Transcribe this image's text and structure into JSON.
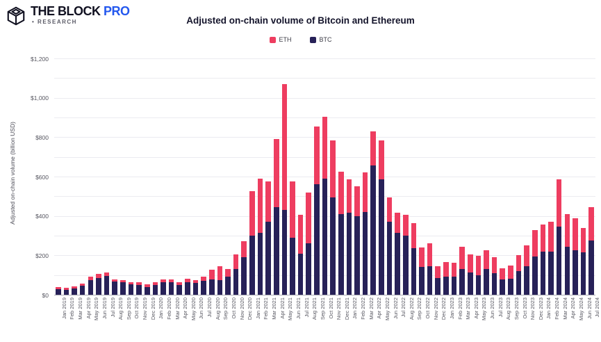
{
  "header": {
    "logo": {
      "brand": "THE BLOCK",
      "pro": "PRO",
      "research_bullet": "•",
      "research": "RESEARCH",
      "pro_color": "#2458ee"
    }
  },
  "legend": [
    {
      "label": "ETH",
      "color": "#ee3d60"
    },
    {
      "label": "BTC",
      "color": "#272158"
    }
  ],
  "chart_data": {
    "type": "bar",
    "stacked": true,
    "title": "Adjusted on-chain volume of Bitcoin and Ethereum",
    "xlabel": "",
    "ylabel": "Adjusted on-chain volume (billion USD)",
    "ylim": [
      0,
      1200
    ],
    "grid": true,
    "grid_step": 100,
    "label_step": 200,
    "legend_position": "top-center",
    "ytick_labels": [
      "$0",
      "$200",
      "$400",
      "$600",
      "$800",
      "$1,000",
      "$1,200"
    ],
    "categories": [
      "Jan 2019",
      "Feb 2019",
      "Mar 2019",
      "Apr 2019",
      "May 2019",
      "Jun 2019",
      "Jul 2019",
      "Aug 2019",
      "Sep 2019",
      "Oct 2019",
      "Nov 2019",
      "Dec 2019",
      "Jan 2020",
      "Feb 2020",
      "Mar 2020",
      "Apr 2020",
      "May 2020",
      "Jun 2020",
      "Jul 2020",
      "Aug 2020",
      "Sep 2020",
      "Oct 2020",
      "Nov 2020",
      "Dec 2020",
      "Jan 2021",
      "Feb 2021",
      "Mar 2021",
      "Apr 2021",
      "May 2021",
      "Jun 2021",
      "Jul 2021",
      "Aug 2021",
      "Sep 2021",
      "Oct 2021",
      "Nov 2021",
      "Dec 2021",
      "Jan 2022",
      "Feb 2022",
      "Mar 2022",
      "Apr 2022",
      "May 2022",
      "Jun 2022",
      "Jul 2022",
      "Aug 2022",
      "Sep 2022",
      "Oct 2022",
      "Nov 2022",
      "Dec 2022",
      "Jan 2023",
      "Feb 2023",
      "Mar 2023",
      "Apr 2023",
      "May 2023",
      "Jun 2023",
      "Jul 2023",
      "Aug 2023",
      "Sep 2023",
      "Oct 2023",
      "Nov 2023",
      "Dec 2023",
      "Jan 2024",
      "Feb 2024",
      "Mar 2024",
      "Apr 2024",
      "May 2024",
      "Jun 2024",
      "Jul 2024"
    ],
    "series": [
      {
        "name": "BTC",
        "color": "#272158",
        "values": [
          29,
          26,
          31,
          46,
          74,
          86,
          95,
          66,
          63,
          52,
          51,
          40,
          51,
          63,
          62,
          48,
          63,
          59,
          70,
          77,
          74,
          92,
          131,
          189,
          300,
          315,
          370,
          445,
          430,
          290,
          210,
          260,
          560,
          590,
          495,
          410,
          415,
          400,
          420,
          655,
          585,
          370,
          315,
          300,
          235,
          140,
          145,
          85,
          93,
          93,
          130,
          113,
          100,
          130,
          110,
          78,
          82,
          120,
          145,
          195,
          218,
          220,
          345,
          245,
          225,
          215,
          275
        ]
      },
      {
        "name": "ETH",
        "color": "#ee3d60",
        "values": [
          10,
          9,
          10,
          11,
          18,
          21,
          17,
          12,
          11,
          11,
          12,
          12,
          12,
          14,
          15,
          14,
          17,
          14,
          21,
          50,
          72,
          39,
          73,
          83,
          225,
          275,
          205,
          345,
          640,
          285,
          195,
          260,
          295,
          315,
          290,
          215,
          170,
          150,
          200,
          175,
          200,
          125,
          100,
          105,
          130,
          100,
          115,
          60,
          72,
          69,
          112,
          92,
          96,
          95,
          80,
          57,
          68,
          80,
          105,
          135,
          137,
          150,
          240,
          165,
          165,
          125,
          170
        ]
      }
    ]
  }
}
